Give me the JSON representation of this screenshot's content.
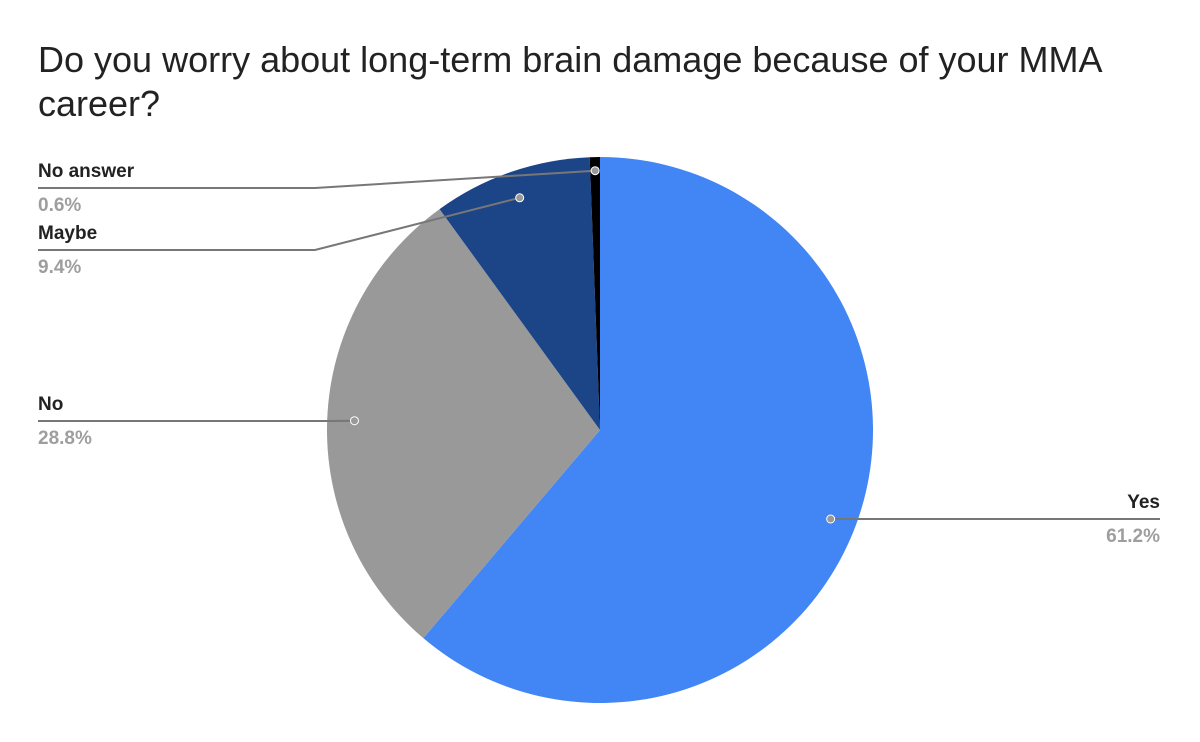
{
  "chart_data": {
    "type": "pie",
    "title": "Do you worry about long-term brain damage because of your MMA career?",
    "categories": [
      "Yes",
      "No",
      "Maybe",
      "No answer"
    ],
    "values": [
      61.2,
      28.8,
      9.4,
      0.6
    ],
    "value_labels": [
      "61.2%",
      "28.8%",
      "9.4%",
      "0.6%"
    ],
    "colors": [
      "#4285f4",
      "#999999",
      "#1c4587",
      "#000000"
    ]
  }
}
